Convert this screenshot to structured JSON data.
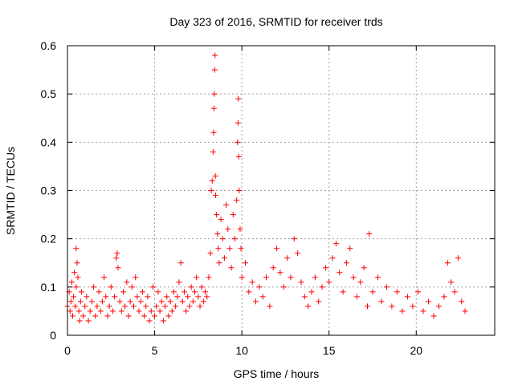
{
  "chart_data": {
    "type": "scatter",
    "title": "Day 323 of 2016, SRMTID for receiver trds",
    "xlabel": "GPS time / hours",
    "ylabel": "SRMTID / TECUs",
    "xlim": [
      0,
      24.5
    ],
    "ylim": [
      0,
      0.6
    ],
    "xticks": [
      0,
      5,
      10,
      15,
      20
    ],
    "xtick_labels": [
      "0",
      "5",
      "10",
      "15",
      "20"
    ],
    "yticks": [
      0,
      0.1,
      0.2,
      0.3,
      0.4,
      0.5,
      0.6
    ],
    "ytick_labels": [
      "0",
      "0.1",
      "0.2",
      "0.3",
      "0.4",
      "0.5",
      "0.6"
    ],
    "grid": true,
    "marker": "+",
    "color": "#ff0000",
    "series": [
      {
        "name": "SRMTID",
        "points": [
          [
            0.0,
            0.06
          ],
          [
            0.1,
            0.09
          ],
          [
            0.15,
            0.05
          ],
          [
            0.2,
            0.07
          ],
          [
            0.25,
            0.11
          ],
          [
            0.3,
            0.04
          ],
          [
            0.35,
            0.08
          ],
          [
            0.4,
            0.13
          ],
          [
            0.45,
            0.06
          ],
          [
            0.5,
            0.1
          ],
          [
            0.5,
            0.18
          ],
          [
            0.55,
            0.15
          ],
          [
            0.6,
            0.12
          ],
          [
            0.65,
            0.05
          ],
          [
            0.7,
            0.03
          ],
          [
            0.75,
            0.07
          ],
          [
            0.8,
            0.09
          ],
          [
            0.9,
            0.04
          ],
          [
            1.0,
            0.06
          ],
          [
            1.1,
            0.08
          ],
          [
            1.2,
            0.03
          ],
          [
            1.3,
            0.05
          ],
          [
            1.4,
            0.07
          ],
          [
            1.5,
            0.1
          ],
          [
            1.6,
            0.04
          ],
          [
            1.7,
            0.06
          ],
          [
            1.8,
            0.09
          ],
          [
            1.9,
            0.05
          ],
          [
            2.0,
            0.07
          ],
          [
            2.1,
            0.12
          ],
          [
            2.2,
            0.08
          ],
          [
            2.3,
            0.04
          ],
          [
            2.4,
            0.06
          ],
          [
            2.5,
            0.1
          ],
          [
            2.6,
            0.05
          ],
          [
            2.7,
            0.08
          ],
          [
            2.8,
            0.16
          ],
          [
            2.85,
            0.17
          ],
          [
            2.9,
            0.14
          ],
          [
            3.0,
            0.07
          ],
          [
            3.1,
            0.05
          ],
          [
            3.2,
            0.09
          ],
          [
            3.3,
            0.06
          ],
          [
            3.4,
            0.11
          ],
          [
            3.5,
            0.04
          ],
          [
            3.6,
            0.07
          ],
          [
            3.7,
            0.1
          ],
          [
            3.8,
            0.06
          ],
          [
            3.9,
            0.12
          ],
          [
            4.0,
            0.08
          ],
          [
            4.1,
            0.05
          ],
          [
            4.2,
            0.07
          ],
          [
            4.3,
            0.09
          ],
          [
            4.4,
            0.04
          ],
          [
            4.5,
            0.06
          ],
          [
            4.6,
            0.08
          ],
          [
            4.7,
            0.03
          ],
          [
            4.8,
            0.05
          ],
          [
            4.9,
            0.1
          ],
          [
            5.0,
            0.04
          ],
          [
            5.1,
            0.06
          ],
          [
            5.2,
            0.09
          ],
          [
            5.3,
            0.05
          ],
          [
            5.4,
            0.07
          ],
          [
            5.5,
            0.03
          ],
          [
            5.6,
            0.06
          ],
          [
            5.7,
            0.08
          ],
          [
            5.8,
            0.04
          ],
          [
            5.9,
            0.07
          ],
          [
            6.0,
            0.05
          ],
          [
            6.1,
            0.09
          ],
          [
            6.2,
            0.06
          ],
          [
            6.3,
            0.08
          ],
          [
            6.4,
            0.11
          ],
          [
            6.5,
            0.15
          ],
          [
            6.6,
            0.07
          ],
          [
            6.7,
            0.09
          ],
          [
            6.8,
            0.05
          ],
          [
            6.9,
            0.08
          ],
          [
            7.0,
            0.06
          ],
          [
            7.1,
            0.1
          ],
          [
            7.2,
            0.07
          ],
          [
            7.3,
            0.09
          ],
          [
            7.4,
            0.12
          ],
          [
            7.5,
            0.08
          ],
          [
            7.6,
            0.06
          ],
          [
            7.7,
            0.1
          ],
          [
            7.8,
            0.07
          ],
          [
            7.9,
            0.09
          ],
          [
            8.0,
            0.08
          ],
          [
            8.1,
            0.12
          ],
          [
            8.2,
            0.17
          ],
          [
            8.25,
            0.3
          ],
          [
            8.3,
            0.32
          ],
          [
            8.35,
            0.38
          ],
          [
            8.38,
            0.42
          ],
          [
            8.4,
            0.47
          ],
          [
            8.42,
            0.5
          ],
          [
            8.44,
            0.55
          ],
          [
            8.46,
            0.58
          ],
          [
            8.48,
            0.33
          ],
          [
            8.5,
            0.29
          ],
          [
            8.55,
            0.25
          ],
          [
            8.6,
            0.21
          ],
          [
            8.65,
            0.18
          ],
          [
            8.7,
            0.15
          ],
          [
            8.8,
            0.24
          ],
          [
            8.9,
            0.2
          ],
          [
            9.0,
            0.16
          ],
          [
            9.1,
            0.27
          ],
          [
            9.2,
            0.22
          ],
          [
            9.3,
            0.18
          ],
          [
            9.4,
            0.14
          ],
          [
            9.5,
            0.25
          ],
          [
            9.6,
            0.2
          ],
          [
            9.7,
            0.28
          ],
          [
            9.75,
            0.4
          ],
          [
            9.78,
            0.44
          ],
          [
            9.8,
            0.49
          ],
          [
            9.82,
            0.37
          ],
          [
            9.85,
            0.3
          ],
          [
            9.9,
            0.22
          ],
          [
            9.95,
            0.18
          ],
          [
            10.0,
            0.12
          ],
          [
            10.2,
            0.15
          ],
          [
            10.4,
            0.09
          ],
          [
            10.6,
            0.11
          ],
          [
            10.8,
            0.07
          ],
          [
            11.0,
            0.1
          ],
          [
            11.2,
            0.08
          ],
          [
            11.4,
            0.12
          ],
          [
            11.6,
            0.06
          ],
          [
            11.8,
            0.14
          ],
          [
            12.0,
            0.18
          ],
          [
            12.2,
            0.13
          ],
          [
            12.4,
            0.1
          ],
          [
            12.6,
            0.16
          ],
          [
            12.8,
            0.12
          ],
          [
            13.0,
            0.2
          ],
          [
            13.2,
            0.17
          ],
          [
            13.4,
            0.11
          ],
          [
            13.6,
            0.08
          ],
          [
            13.8,
            0.06
          ],
          [
            14.0,
            0.09
          ],
          [
            14.2,
            0.12
          ],
          [
            14.4,
            0.07
          ],
          [
            14.6,
            0.1
          ],
          [
            14.8,
            0.14
          ],
          [
            15.0,
            0.11
          ],
          [
            15.2,
            0.16
          ],
          [
            15.4,
            0.19
          ],
          [
            15.6,
            0.13
          ],
          [
            15.8,
            0.09
          ],
          [
            16.0,
            0.15
          ],
          [
            16.2,
            0.18
          ],
          [
            16.4,
            0.12
          ],
          [
            16.6,
            0.08
          ],
          [
            16.8,
            0.11
          ],
          [
            17.0,
            0.14
          ],
          [
            17.2,
            0.06
          ],
          [
            17.3,
            0.21
          ],
          [
            17.5,
            0.09
          ],
          [
            17.8,
            0.12
          ],
          [
            18.0,
            0.07
          ],
          [
            18.3,
            0.1
          ],
          [
            18.6,
            0.06
          ],
          [
            18.9,
            0.09
          ],
          [
            19.2,
            0.05
          ],
          [
            19.5,
            0.08
          ],
          [
            19.8,
            0.06
          ],
          [
            20.1,
            0.09
          ],
          [
            20.4,
            0.05
          ],
          [
            20.7,
            0.07
          ],
          [
            21.0,
            0.04
          ],
          [
            21.3,
            0.06
          ],
          [
            21.6,
            0.08
          ],
          [
            21.8,
            0.15
          ],
          [
            22.0,
            0.11
          ],
          [
            22.2,
            0.09
          ],
          [
            22.4,
            0.16
          ],
          [
            22.6,
            0.07
          ],
          [
            22.8,
            0.05
          ]
        ]
      }
    ]
  }
}
